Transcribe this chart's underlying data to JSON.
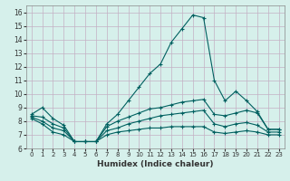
{
  "xlabel": "Humidex (Indice chaleur)",
  "bg_color": "#d6f0eb",
  "grid_color": "#c4b0c4",
  "line_color": "#006060",
  "xlim": [
    -0.5,
    23.5
  ],
  "ylim": [
    6,
    16.5
  ],
  "xticks": [
    0,
    1,
    2,
    3,
    4,
    5,
    6,
    7,
    8,
    9,
    10,
    11,
    12,
    13,
    14,
    15,
    16,
    17,
    18,
    19,
    20,
    21,
    22,
    23
  ],
  "yticks": [
    6,
    7,
    8,
    9,
    10,
    11,
    12,
    13,
    14,
    15,
    16
  ],
  "line1_x": [
    0,
    1,
    2,
    3,
    4,
    5,
    6,
    7,
    8,
    9,
    10,
    11,
    12,
    13,
    14,
    15,
    16,
    17,
    18,
    19,
    20,
    21,
    22,
    23
  ],
  "line1_y": [
    8.5,
    9.0,
    8.2,
    7.7,
    6.5,
    6.5,
    6.5,
    7.8,
    8.5,
    9.5,
    10.5,
    11.5,
    12.2,
    13.8,
    14.8,
    15.8,
    15.6,
    11.0,
    9.5,
    10.2,
    9.5,
    8.7,
    7.4,
    7.4
  ],
  "line2_x": [
    0,
    1,
    2,
    3,
    4,
    5,
    6,
    7,
    8,
    9,
    10,
    11,
    12,
    13,
    14,
    15,
    16,
    17,
    18,
    19,
    20,
    21,
    22,
    23
  ],
  "line2_y": [
    8.4,
    8.3,
    7.8,
    7.5,
    6.5,
    6.5,
    6.5,
    7.6,
    8.0,
    8.3,
    8.6,
    8.9,
    9.0,
    9.2,
    9.4,
    9.5,
    9.6,
    8.5,
    8.4,
    8.6,
    8.8,
    8.6,
    7.4,
    7.4
  ],
  "line3_x": [
    0,
    1,
    2,
    3,
    4,
    5,
    6,
    7,
    8,
    9,
    10,
    11,
    12,
    13,
    14,
    15,
    16,
    17,
    18,
    19,
    20,
    21,
    22,
    23
  ],
  "line3_y": [
    8.3,
    8.0,
    7.5,
    7.3,
    6.5,
    6.5,
    6.5,
    7.3,
    7.5,
    7.8,
    8.0,
    8.2,
    8.4,
    8.5,
    8.6,
    8.7,
    8.8,
    7.8,
    7.6,
    7.8,
    7.9,
    7.7,
    7.2,
    7.2
  ],
  "line4_x": [
    0,
    1,
    2,
    3,
    4,
    5,
    6,
    7,
    8,
    9,
    10,
    11,
    12,
    13,
    14,
    15,
    16,
    17,
    18,
    19,
    20,
    21,
    22,
    23
  ],
  "line4_y": [
    8.2,
    7.8,
    7.2,
    7.0,
    6.5,
    6.5,
    6.5,
    7.0,
    7.2,
    7.3,
    7.4,
    7.5,
    7.5,
    7.6,
    7.6,
    7.6,
    7.6,
    7.2,
    7.1,
    7.2,
    7.3,
    7.2,
    7.0,
    7.0
  ]
}
